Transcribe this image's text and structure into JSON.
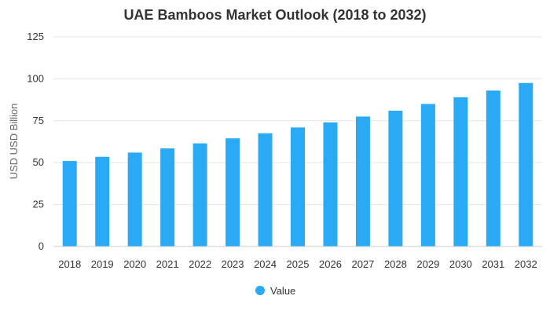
{
  "chart_data": {
    "type": "bar",
    "title": "UAE Bamboos Market Outlook (2018 to 2032)",
    "xlabel": "",
    "ylabel": "USD USD Billion",
    "ylim": [
      0,
      125
    ],
    "yticks": [
      "0",
      "25",
      "50",
      "75",
      "100",
      "125"
    ],
    "categories": [
      "2018",
      "2019",
      "2020",
      "2021",
      "2022",
      "2023",
      "2024",
      "2025",
      "2026",
      "2027",
      "2028",
      "2029",
      "2030",
      "2031",
      "2032"
    ],
    "series": [
      {
        "name": "Value",
        "color": "#2aaaf4",
        "values": [
          51,
          53.5,
          56,
          58.5,
          61.5,
          64.5,
          67.5,
          71,
          74,
          77.5,
          81,
          85,
          89,
          93,
          97.5
        ]
      }
    ],
    "grid": true,
    "legend_position": "bottom-center"
  }
}
